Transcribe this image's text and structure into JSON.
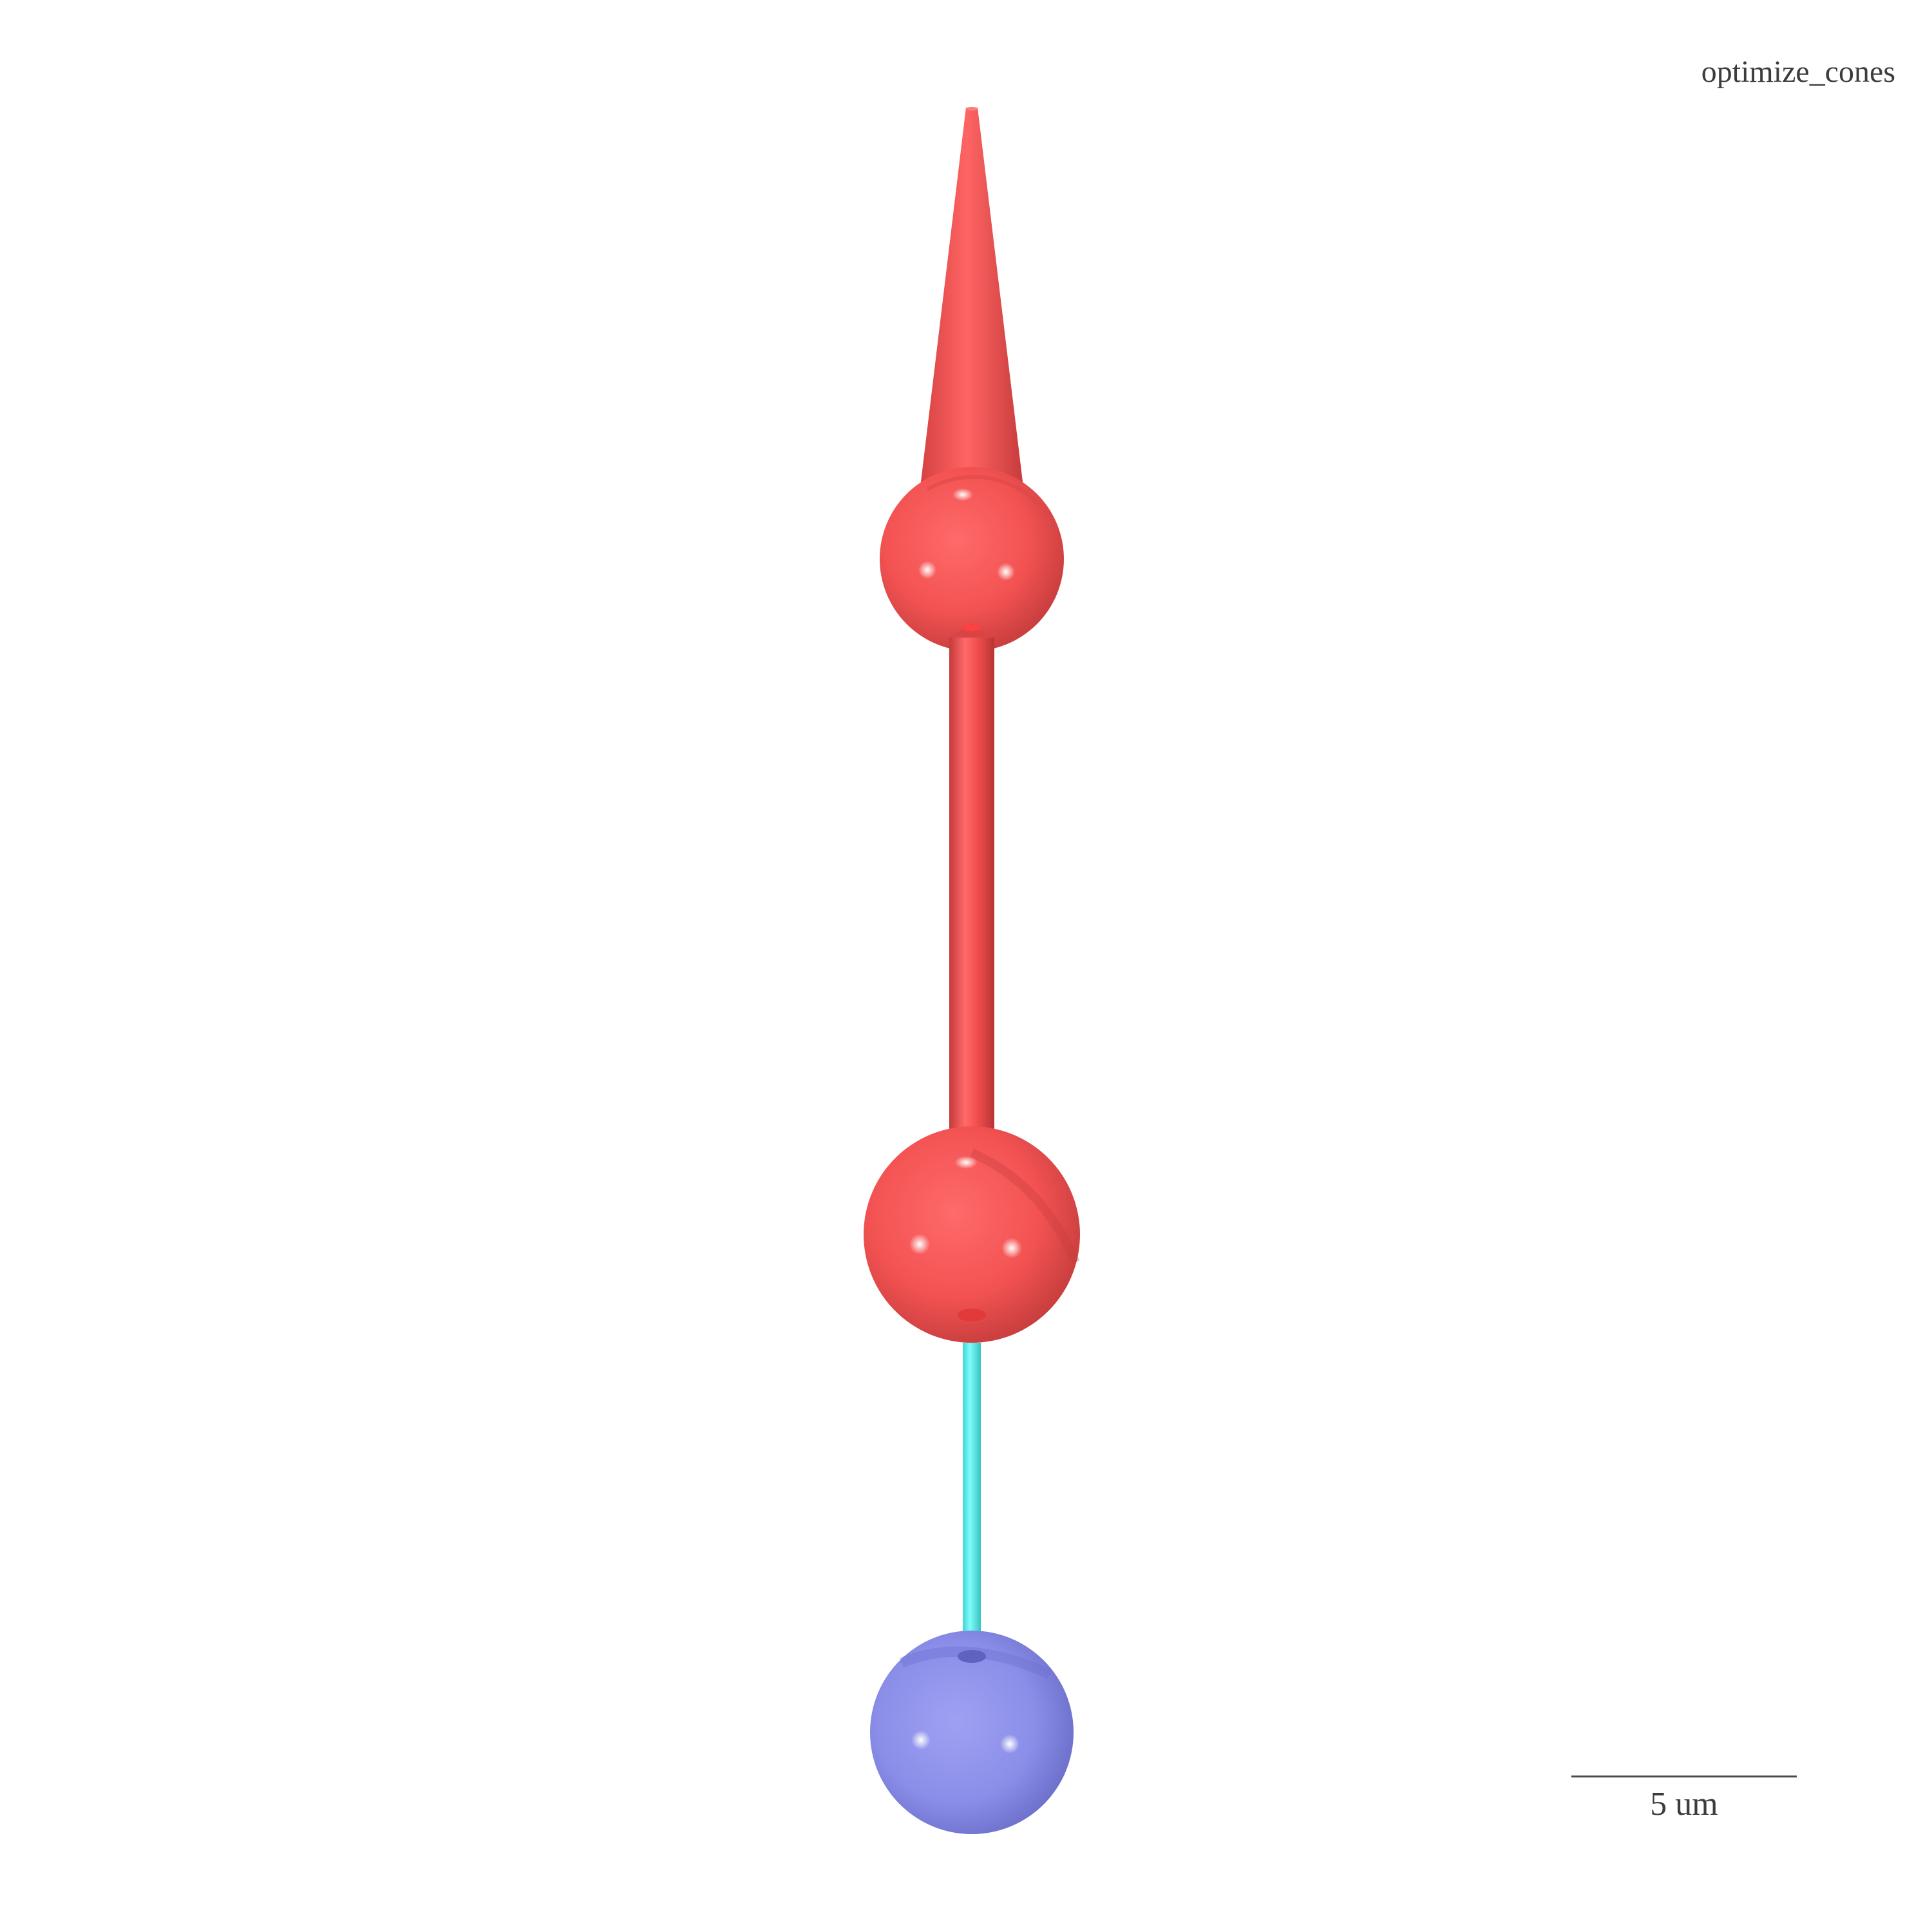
{
  "title": "optimize_cones",
  "scalebar": {
    "label": "5 um"
  },
  "colors": {
    "neurite": "#f55252",
    "axon": "#55f2f0",
    "soma": "#8b8ee8",
    "background": "#ffffff"
  },
  "icons": {
    "cone": "cone-shape",
    "sphere": "sphere-shape",
    "cylinder": "cylinder-shape"
  }
}
